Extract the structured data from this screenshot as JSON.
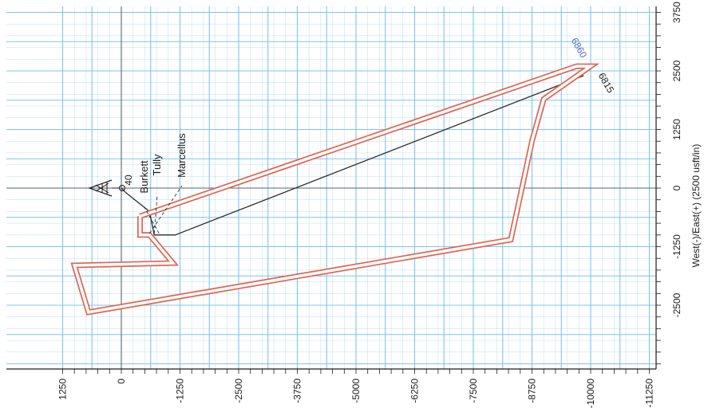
{
  "chart_data": {
    "type": "line",
    "orientation": "rotated-90-clockwise",
    "x_axis": {
      "label": "West(-)/East(+) (2500 usft/in)",
      "range": [
        -3750,
        3750
      ],
      "ticks": [
        -2500,
        -1250,
        0,
        1250,
        2500,
        3750
      ],
      "tick_labels": [
        "-2500",
        "-1250",
        "0",
        "1250",
        "2500",
        "3750"
      ]
    },
    "y_axis": {
      "label": "",
      "range": [
        1250,
        -11250
      ],
      "ticks": [
        1250,
        0,
        -1250,
        -2500,
        -3750,
        -5000,
        -6250,
        -7500,
        -8750,
        -10000,
        -11250
      ],
      "tick_labels": [
        "1250",
        "0",
        "-1250",
        "-2500",
        "-3750",
        "-5000",
        "-6250",
        "-7500",
        "-8750",
        "-10000",
        "-11250"
      ]
    },
    "grid": true,
    "series": [
      {
        "name": "",
        "role": "wellpath",
        "color": "#2b2b2b",
        "points": [
          [
            0,
            0
          ],
          [
            -100,
            -100
          ],
          [
            -500,
            -600
          ],
          [
            -1000,
            -700
          ],
          [
            -1000,
            -1150
          ],
          [
            2400,
            -9850
          ]
        ]
      },
      {
        "name": "",
        "role": "lease-boundary",
        "color": "#e0634f",
        "points": [
          [
            -600,
            -400
          ],
          [
            -1000,
            -400
          ],
          [
            -1000,
            -600
          ],
          [
            -1600,
            -1100
          ],
          [
            -1650,
            1000
          ],
          [
            -2650,
            700
          ],
          [
            -1100,
            -8300
          ],
          [
            1000,
            -8750
          ],
          [
            1900,
            -9000
          ],
          [
            2600,
            -10000
          ],
          [
            2600,
            -9700
          ],
          [
            -600,
            -400
          ]
        ]
      }
    ],
    "formations": [
      "Marcellus",
      "Tully",
      "Burkett"
    ],
    "annotations": [
      "40",
      "6860",
      "6815"
    ],
    "colors": {
      "grid": "#7fc4ec",
      "boundary": "#e0634f",
      "wellpath": "#2b2b2b",
      "depth_label": "#4a6fc0"
    }
  }
}
